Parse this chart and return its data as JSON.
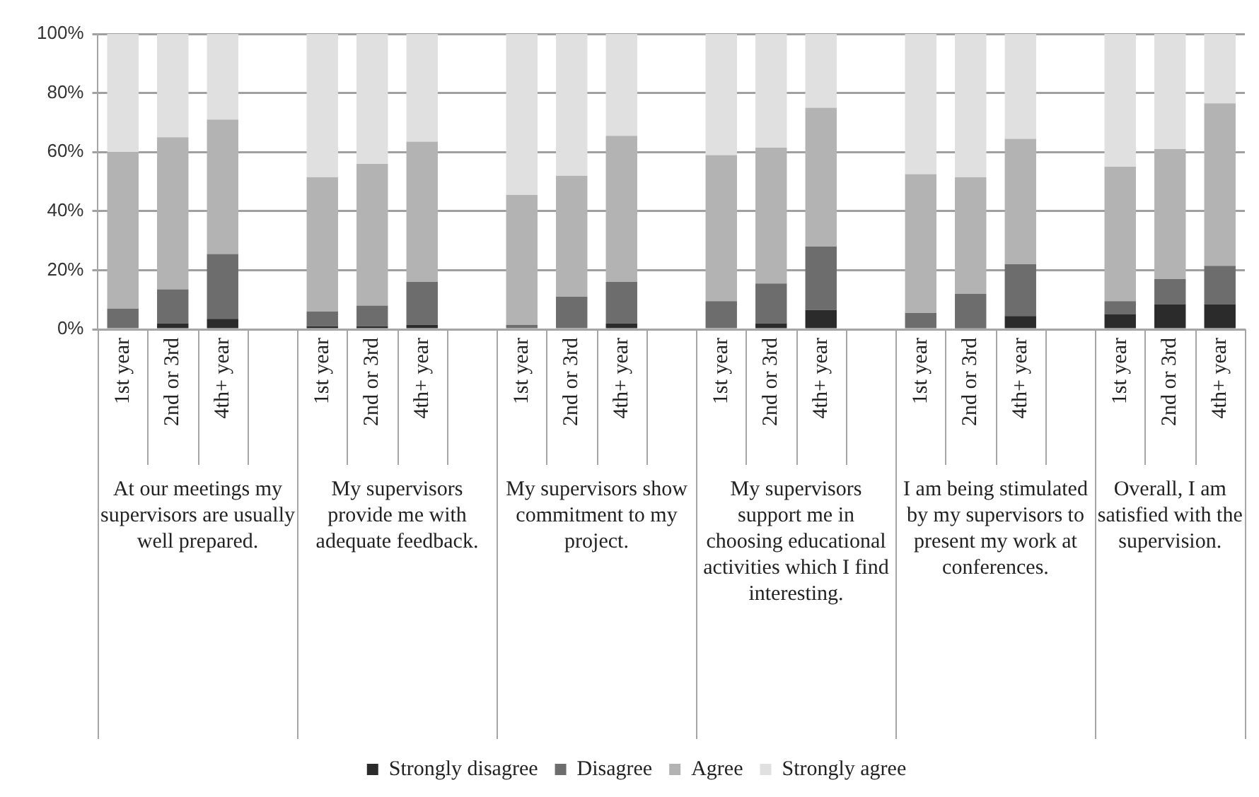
{
  "chart_data": {
    "type": "bar",
    "stacked": true,
    "categories": [
      "1st year",
      "2nd or 3rd",
      "4th+ year",
      null,
      "1st year",
      "2nd or 3rd",
      "4th+ year",
      null,
      "1st year",
      "2nd or 3rd",
      "4th+ year",
      null,
      "1st year",
      "2nd or 3rd",
      "4th+ year",
      null,
      "1st year",
      "2nd or 3rd",
      "4th+ year",
      null,
      "1st year",
      "2nd or 3rd",
      "4th+ year"
    ],
    "series": [
      {
        "name": "Strongly disagree",
        "color": "#2b2b2b",
        "values": [
          0,
          2,
          3.5,
          null,
          1,
          1,
          1.5,
          null,
          0,
          0,
          2,
          null,
          0,
          2,
          6.5,
          null,
          0,
          0.5,
          4.5,
          null,
          5,
          8.5,
          8.5
        ]
      },
      {
        "name": "Disagree",
        "color": "#6d6d6d",
        "values": [
          7,
          11.5,
          22,
          null,
          5,
          7,
          14.5,
          null,
          1.5,
          11,
          14,
          null,
          9.5,
          13.5,
          21.5,
          null,
          5.5,
          11.5,
          17.5,
          null,
          4.5,
          8.5,
          13
        ]
      },
      {
        "name": "Agree",
        "color": "#b3b3b3",
        "values": [
          53,
          51.5,
          45.5,
          null,
          45.5,
          48,
          47.5,
          null,
          44,
          41,
          49.5,
          null,
          49.5,
          46,
          47,
          null,
          47,
          39.5,
          42.5,
          null,
          45.5,
          44,
          55
        ]
      },
      {
        "name": "Strongly agree",
        "color": "#e0e0e0",
        "values": [
          40,
          35,
          29,
          null,
          48.5,
          44,
          36.5,
          null,
          54.5,
          48,
          34.5,
          null,
          41,
          38.5,
          25,
          null,
          47.5,
          48.5,
          35.5,
          null,
          45,
          39,
          23.5
        ]
      }
    ],
    "ylim": [
      0,
      100
    ],
    "yticks": [
      {
        "value": 0,
        "label": "0%"
      },
      {
        "value": 20,
        "label": "20%"
      },
      {
        "value": 40,
        "label": "40%"
      },
      {
        "value": 60,
        "label": "60%"
      },
      {
        "value": 80,
        "label": "80%"
      },
      {
        "value": 100,
        "label": "100%"
      }
    ],
    "grid": "y",
    "legend": "bottom",
    "annotations": [
      "At our meetings my supervisors are usually well prepared.",
      "My supervisors provide me with adequate feedback.",
      "My supervisors show commitment to my project.",
      "My supervisors support me in choosing educational activities which I find interesting.",
      "I am being stimulated by my supervisors to present my work at conferences.",
      "Overall, I am satisfied with the supervision."
    ]
  }
}
